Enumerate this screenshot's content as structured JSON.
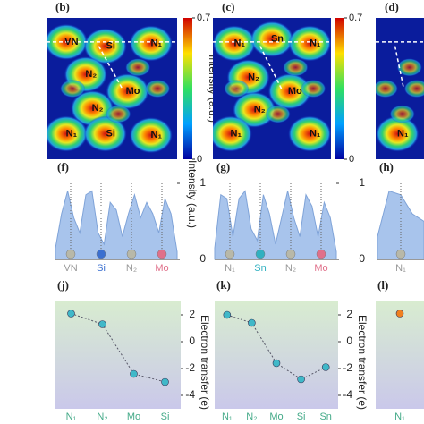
{
  "heatmaps": [
    {
      "label": "(b)",
      "atoms": [
        "VN",
        "Si",
        "N₁",
        "N₂",
        "Mo",
        "N₂",
        "N₁",
        "Si",
        "N₁"
      ],
      "colorbar_ticks": [
        0,
        0.7
      ],
      "colorbar_label": "Intensity (a.u.)"
    },
    {
      "label": "(c)",
      "atoms": [
        "N₁",
        "Sn",
        "N₁",
        "N₂",
        "Mo",
        "N₂",
        "N₁",
        "N₁"
      ],
      "colorbar_ticks": [
        0,
        0.7
      ]
    },
    {
      "label": "(d)",
      "atoms": [
        "N₁"
      ]
    }
  ],
  "chart_data": [
    {
      "type": "area",
      "label": "(f)",
      "y_label": "Intensity (a.u.)",
      "xlim": [
        0,
        1
      ],
      "ylim": [
        0,
        1
      ],
      "yticks": [
        0,
        1
      ],
      "x": [
        0,
        0.05,
        0.1,
        0.15,
        0.2,
        0.25,
        0.3,
        0.35,
        0.4,
        0.45,
        0.5,
        0.55,
        0.6,
        0.65,
        0.7,
        0.75,
        0.8,
        0.85,
        0.9,
        0.95,
        1
      ],
      "values": [
        0.15,
        0.6,
        0.9,
        0.55,
        0.35,
        0.85,
        0.9,
        0.35,
        0.2,
        0.75,
        0.65,
        0.3,
        0.6,
        0.85,
        0.55,
        0.75,
        0.6,
        0.35,
        0.8,
        0.6,
        0.1
      ],
      "color": "#a8c4ec",
      "categories": [
        "VN",
        "Si",
        "N₂",
        "Mo"
      ],
      "atom_colors": [
        "#b8b8a8",
        "#3a6fd0",
        "#b8b8a8",
        "#e0708a"
      ]
    },
    {
      "type": "area",
      "label": "(g)",
      "xlim": [
        0,
        1
      ],
      "ylim": [
        0,
        1
      ],
      "yticks": [
        0,
        1
      ],
      "x": [
        0,
        0.05,
        0.1,
        0.15,
        0.2,
        0.25,
        0.3,
        0.35,
        0.4,
        0.45,
        0.5,
        0.55,
        0.6,
        0.65,
        0.7,
        0.75,
        0.8,
        0.85,
        0.9,
        0.95,
        1
      ],
      "values": [
        0.15,
        0.85,
        0.8,
        0.3,
        0.8,
        0.9,
        0.4,
        0.25,
        0.85,
        0.6,
        0.2,
        0.55,
        0.9,
        0.55,
        0.3,
        0.85,
        0.7,
        0.3,
        0.75,
        0.55,
        0.1
      ],
      "color": "#a8c4ec",
      "categories": [
        "N₁",
        "Sn",
        "N₂",
        "Mo"
      ],
      "atom_colors": [
        "#b8b8a8",
        "#30b0c0",
        "#b8b8a8",
        "#e0708a"
      ]
    },
    {
      "type": "area",
      "label": "(h)",
      "xlim": [
        0,
        0.4
      ],
      "ylim": [
        0,
        1
      ],
      "x": [
        0,
        0.1,
        0.2,
        0.3,
        0.4
      ],
      "values": [
        0.3,
        0.9,
        0.85,
        0.6,
        0.5
      ],
      "color": "#a8c4ec",
      "categories": [
        "N₁"
      ],
      "atom_colors": [
        "#b8b8a8"
      ]
    },
    {
      "type": "line",
      "label": "(j)",
      "y_label": "Electron transfer (e)",
      "ylim": [
        -5,
        3
      ],
      "yticks": [
        -4,
        -2,
        0,
        2
      ],
      "categories": [
        "N₁",
        "N₂",
        "Mo",
        "Si"
      ],
      "values": [
        2.1,
        1.3,
        -2.4,
        -3.0
      ],
      "color": "#40b8c8"
    },
    {
      "type": "line",
      "label": "(k)",
      "y_label": "Electron transfer (e)",
      "ylim": [
        -5,
        3
      ],
      "yticks": [
        -4,
        -2,
        0,
        2
      ],
      "categories": [
        "N₁",
        "N₂",
        "Mo",
        "Si",
        "Sn"
      ],
      "values": [
        2.0,
        1.4,
        -1.6,
        -2.8,
        -1.9
      ],
      "color": "#40b8c8"
    },
    {
      "type": "line",
      "label": "(l)",
      "ylim": [
        -5,
        3
      ],
      "categories": [
        "N₁"
      ],
      "values": [
        2.1
      ],
      "color": "#f08020"
    }
  ]
}
